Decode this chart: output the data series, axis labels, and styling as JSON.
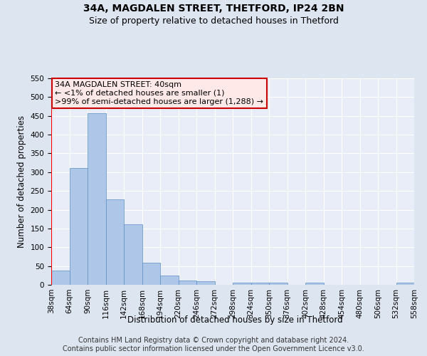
{
  "title": "34A, MAGDALEN STREET, THETFORD, IP24 2BN",
  "subtitle": "Size of property relative to detached houses in Thetford",
  "xlabel": "Distribution of detached houses by size in Thetford",
  "ylabel": "Number of detached properties",
  "bar_values": [
    38,
    311,
    457,
    228,
    161,
    59,
    24,
    11,
    9,
    0,
    5,
    6,
    6,
    0,
    5,
    0,
    0,
    0,
    0,
    5
  ],
  "bar_labels": [
    "38sqm",
    "64sqm",
    "90sqm",
    "116sqm",
    "142sqm",
    "168sqm",
    "194sqm",
    "220sqm",
    "246sqm",
    "272sqm",
    "298sqm",
    "324sqm",
    "350sqm",
    "376sqm",
    "402sqm",
    "428sqm",
    "454sqm",
    "480sqm",
    "506sqm",
    "532sqm",
    "558sqm"
  ],
  "bar_color": "#aec6e8",
  "bar_edgecolor": "#5a8fc2",
  "annotation_box_text": "34A MAGDALEN STREET: 40sqm\n← <1% of detached houses are smaller (1)\n>99% of semi-detached houses are larger (1,288) →",
  "annotation_box_color": "#ffe8e8",
  "annotation_box_edgecolor": "#cc0000",
  "ylim": [
    0,
    550
  ],
  "yticks": [
    0,
    50,
    100,
    150,
    200,
    250,
    300,
    350,
    400,
    450,
    500,
    550
  ],
  "bg_color": "#dde5f0",
  "plot_bg_color": "#e8edf8",
  "footer_text": "Contains HM Land Registry data © Crown copyright and database right 2024.\nContains public sector information licensed under the Open Government Licence v3.0.",
  "title_fontsize": 10,
  "subtitle_fontsize": 9,
  "annotation_fontsize": 8,
  "axis_label_fontsize": 8.5,
  "tick_fontsize": 7.5,
  "footer_fontsize": 7
}
